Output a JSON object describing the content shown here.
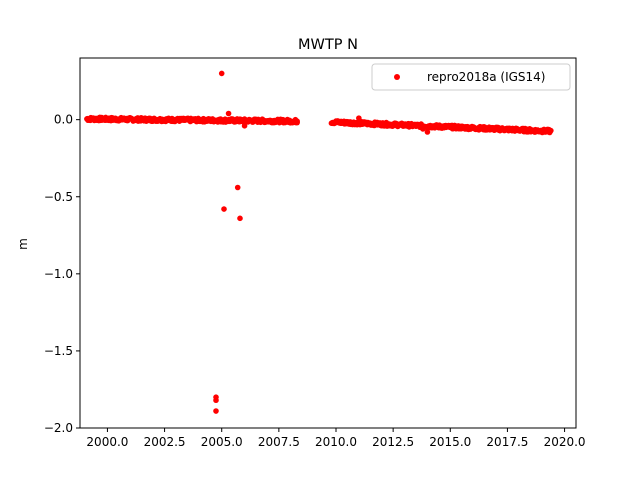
{
  "chart_data": {
    "type": "scatter",
    "title": "MWTP N",
    "xlabel": "",
    "ylabel": "m",
    "xlim": [
      1998.8,
      2020.5
    ],
    "ylim": [
      -2.0,
      0.4
    ],
    "xticks": [
      2000.0,
      2002.5,
      2005.0,
      2007.5,
      2010.0,
      2012.5,
      2015.0,
      2017.5,
      2020.0
    ],
    "xtick_labels": [
      "2000.0",
      "2002.5",
      "2005.0",
      "2007.5",
      "2010.0",
      "2012.5",
      "2015.0",
      "2017.5",
      "2020.0"
    ],
    "yticks": [
      -2.0,
      -1.5,
      -1.0,
      -0.5,
      0.0
    ],
    "ytick_labels": [
      "−2.0",
      "−1.5",
      "−1.0",
      "−0.5",
      "0.0"
    ],
    "grid": false,
    "legend_position": "top-right",
    "series": [
      {
        "name": "repro2018a (IGS14)",
        "color": "#ff0000",
        "segments": [
          {
            "x_start": 1999.1,
            "x_end": 2008.3,
            "y_start": 0.005,
            "y_end": -0.01
          },
          {
            "x_start": 2009.8,
            "x_end": 2019.4,
            "y_start": -0.015,
            "y_end": -0.075
          }
        ],
        "outliers": [
          {
            "x": 2005.0,
            "y": 0.3
          },
          {
            "x": 2005.3,
            "y": 0.04
          },
          {
            "x": 2005.1,
            "y": -0.58
          },
          {
            "x": 2005.7,
            "y": -0.44
          },
          {
            "x": 2005.8,
            "y": -0.64
          },
          {
            "x": 2004.75,
            "y": -1.8
          },
          {
            "x": 2004.75,
            "y": -1.82
          },
          {
            "x": 2004.75,
            "y": -1.89
          },
          {
            "x": 2006.0,
            "y": -0.04
          },
          {
            "x": 2011.0,
            "y": 0.01
          },
          {
            "x": 2013.8,
            "y": -0.06
          },
          {
            "x": 2014.0,
            "y": -0.08
          },
          {
            "x": 2008.3,
            "y": -0.01
          }
        ]
      }
    ]
  }
}
